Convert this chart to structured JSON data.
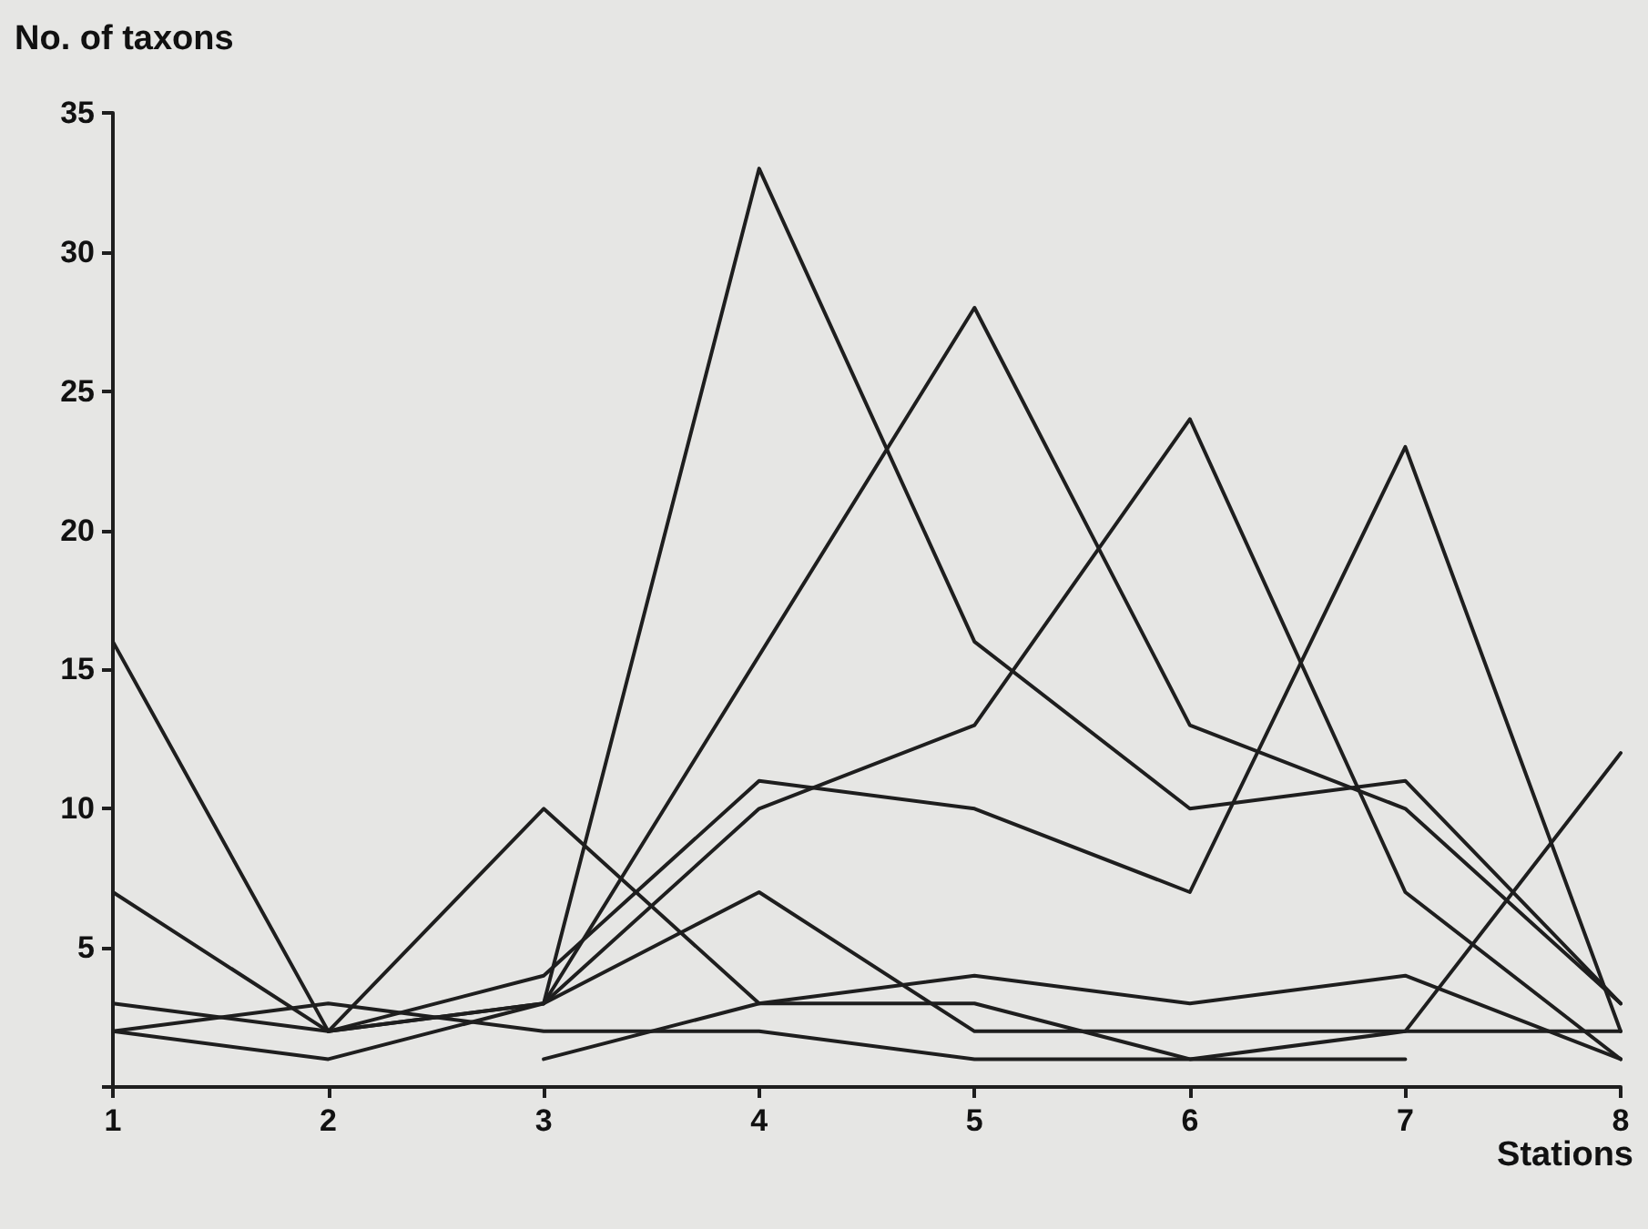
{
  "chart_data": {
    "type": "line",
    "xlabel": "Stations",
    "ylabel": "No. of taxons",
    "xlim": [
      1,
      8
    ],
    "xticks": [
      1,
      2,
      3,
      4,
      5,
      6,
      7,
      8
    ],
    "ylim": [
      0,
      35
    ],
    "yticks": [
      {
        "value": 0,
        "label": null
      },
      5,
      10,
      15,
      20,
      25,
      30,
      35
    ],
    "grid": false,
    "marker": "none",
    "line_style": "solid",
    "series": [
      {
        "color": "#1e1e1e",
        "x": [
          1,
          2,
          3,
          4,
          5,
          6,
          7,
          8
        ],
        "values": [
          16,
          2,
          10,
          3,
          3,
          1,
          2,
          2
        ]
      },
      {
        "color": "#1e1e1e",
        "x": [
          2,
          3,
          4,
          5,
          6,
          7,
          8
        ],
        "values": [
          2,
          3,
          33,
          16,
          10,
          11,
          3
        ]
      },
      {
        "color": "#1e1e1e",
        "x": [
          3,
          5,
          6,
          7,
          8
        ],
        "values": [
          3,
          28,
          13,
          10,
          3
        ]
      },
      {
        "color": "#1e1e1e",
        "x": [
          1,
          2,
          3,
          4,
          5,
          6,
          7,
          8
        ],
        "values": [
          2,
          1,
          3,
          10,
          13,
          24,
          7,
          1
        ]
      },
      {
        "color": "#1e1e1e",
        "x": [
          1,
          2,
          3,
          4,
          5,
          6,
          7,
          8
        ],
        "values": [
          3,
          2,
          4,
          11,
          10,
          7,
          23,
          2
        ]
      },
      {
        "color": "#1e1e1e",
        "x": [
          1,
          2,
          3,
          4,
          5,
          6,
          7,
          8
        ],
        "values": [
          7,
          2,
          3,
          7,
          2,
          2,
          2,
          12
        ]
      },
      {
        "color": "#1e1e1e",
        "x": [
          1,
          2,
          3,
          4,
          5,
          6,
          7
        ],
        "values": [
          2,
          3,
          2,
          2,
          1,
          1,
          1
        ]
      },
      {
        "color": "#1e1e1e",
        "x": [
          3,
          4,
          5,
          6,
          7,
          8
        ],
        "values": [
          1,
          3,
          4,
          3,
          4,
          1
        ]
      }
    ]
  }
}
